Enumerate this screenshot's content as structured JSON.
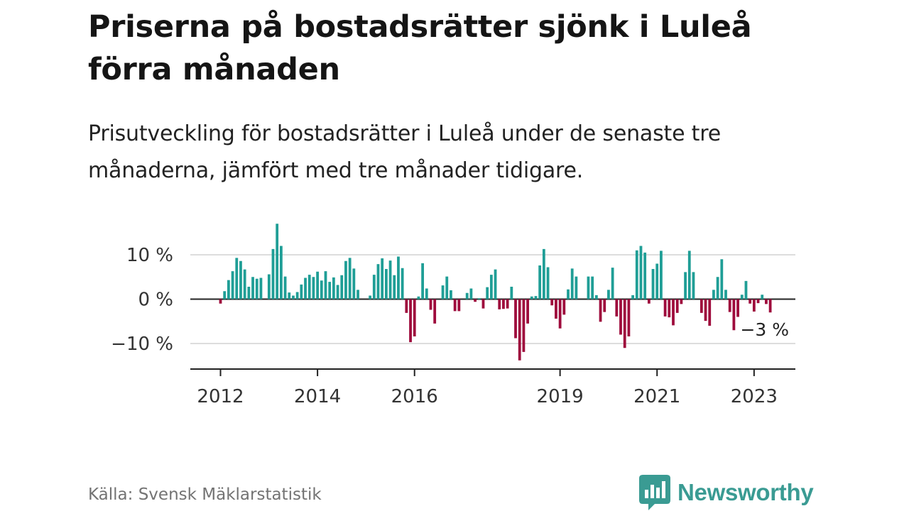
{
  "header": {
    "title": "Priserna på bostadsrätter sjönk i Luleå förra månaden",
    "subtitle": "Prisutveckling för bostadsrätter i Luleå under de senaste tre månaderna, jämfört med tre månader tidigare."
  },
  "footer": {
    "source": "Källa: Svensk Mäklarstatistik",
    "brand": "Newsworthy",
    "brand_color": "#3a9b93"
  },
  "chart_data": {
    "type": "bar",
    "title": "Priserna på bostadsrätter sjönk i Luleå förra månaden",
    "subtitle": "Prisutveckling för bostadsrätter i Luleå under de senaste tre månaderna, jämfört med tre månader tidigare.",
    "xlabel": "",
    "ylabel": "",
    "x_start": "2012-01",
    "frequency": "monthly",
    "ylim": [
      -16,
      19
    ],
    "y_ticks": [
      10,
      0,
      -10
    ],
    "y_tick_labels": [
      "10 %",
      "0 %",
      "−10 %"
    ],
    "x_ticks": [
      "2012",
      "2014",
      "2016",
      "2019",
      "2021",
      "2023"
    ],
    "grid": true,
    "colors": {
      "positive": "#1f9e96",
      "negative": "#9e0b3c",
      "grid": "#dddddd",
      "axis": "#222222"
    },
    "annotation": {
      "text": "−3 %"
    },
    "values": [
      -1,
      1.8,
      4.3,
      6.3,
      9.3,
      8.6,
      6.7,
      2.8,
      5,
      4.6,
      4.8,
      null,
      5.6,
      11.3,
      17,
      12,
      5.1,
      1.5,
      0.8,
      1.6,
      3.3,
      4.8,
      5.5,
      5,
      6.2,
      4.2,
      6.3,
      3.9,
      4.9,
      3.2,
      5.4,
      8.6,
      9.3,
      6.9,
      2.1,
      null,
      null,
      0.8,
      5.5,
      7.9,
      9.2,
      6.8,
      8.7,
      5.4,
      9.6,
      7,
      -3.1,
      -9.7,
      -8.4,
      0.6,
      8.1,
      2.4,
      -2.4,
      -5.5,
      null,
      3.1,
      5.1,
      2,
      -2.7,
      -2.7,
      null,
      1.4,
      2.4,
      -0.6,
      0.2,
      -2.1,
      2.7,
      5.5,
      6.7,
      -2.3,
      -2.2,
      -2.1,
      2.8,
      -8.8,
      -13.8,
      -11.9,
      -5.5,
      0.6,
      0.7,
      7.6,
      11.3,
      7.2,
      -1.4,
      -4.4,
      -6.6,
      -3.5,
      2.2,
      6.9,
      5.1,
      null,
      null,
      5.1,
      5.1,
      0.9,
      -5.1,
      -2.9,
      2.1,
      7.1,
      -3.9,
      -8,
      -11,
      -8.4,
      0.9,
      11,
      12,
      10.5,
      -1,
      6.8,
      8,
      10.9,
      -3.9,
      -4.1,
      -5.9,
      -3.1,
      -1.1,
      6.1,
      10.9,
      6.1,
      null,
      -3.1,
      -4.9,
      -6,
      2.1,
      5,
      9,
      2.1,
      -2.9,
      -7,
      -4,
      1,
      4.1,
      -1,
      -2.8,
      -0.9,
      1,
      -1.1,
      -3
    ]
  }
}
